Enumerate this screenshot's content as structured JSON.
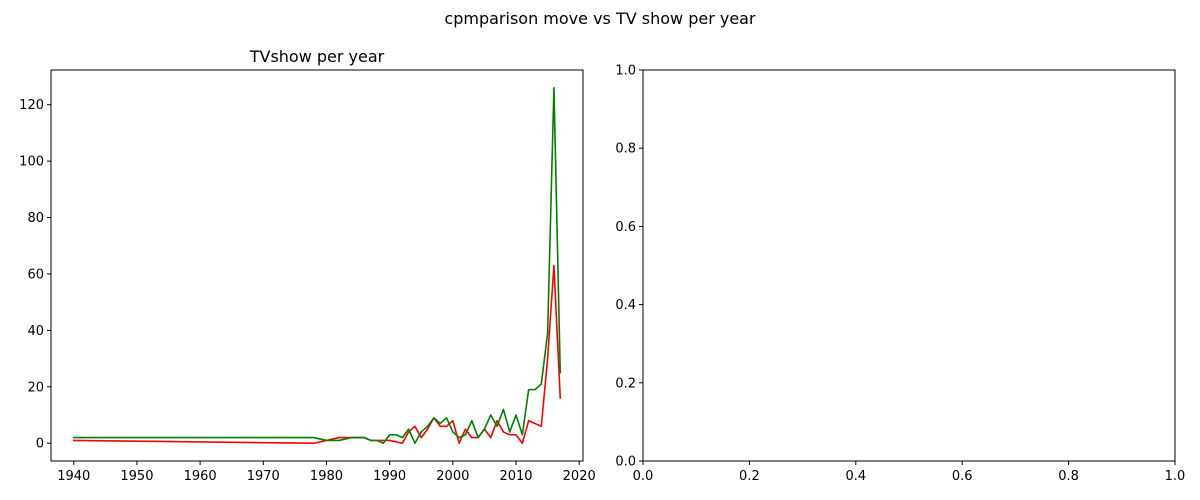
{
  "figure": {
    "suptitle": "cpmparison move vs TV show per year"
  },
  "chart_data": [
    {
      "type": "line",
      "title": "TVshow per year",
      "xlabel": "",
      "ylabel": "",
      "xlim": [
        1936.4,
        2020.6
      ],
      "ylim": [
        -6.3,
        132.3
      ],
      "xticks": [
        1940,
        1950,
        1960,
        1970,
        1980,
        1990,
        2000,
        2010,
        2020
      ],
      "yticks": [
        0,
        20,
        40,
        60,
        80,
        100,
        120
      ],
      "grid": false,
      "series": [
        {
          "color": "#ff0000",
          "x": [
            1940,
            1978,
            1980,
            1982,
            1984,
            1986,
            1987,
            1988,
            1990,
            1992,
            1993,
            1994,
            1995,
            1996,
            1997,
            1998,
            1999,
            2000,
            2001,
            2002,
            2003,
            2004,
            2005,
            2006,
            2007,
            2008,
            2009,
            2010,
            2011,
            2012,
            2013,
            2014,
            2015,
            2016,
            2017
          ],
          "values": [
            1,
            0,
            1,
            2,
            2,
            2,
            1,
            1,
            1,
            0,
            4,
            6,
            2,
            5,
            9,
            6,
            6,
            8,
            0,
            5,
            2,
            2,
            5,
            2,
            8,
            4,
            3,
            3,
            0,
            8,
            7,
            6,
            30,
            63,
            16
          ]
        },
        {
          "color": "#008000",
          "x": [
            1940,
            1978,
            1980,
            1982,
            1984,
            1986,
            1987,
            1988,
            1989,
            1990,
            1991,
            1992,
            1993,
            1994,
            1995,
            1996,
            1997,
            1998,
            1999,
            2000,
            2001,
            2002,
            2003,
            2004,
            2005,
            2006,
            2007,
            2008,
            2009,
            2010,
            2011,
            2012,
            2013,
            2014,
            2015,
            2016,
            2017
          ],
          "values": [
            2,
            2,
            1,
            1,
            2,
            2,
            1,
            1,
            0,
            3,
            3,
            2,
            5,
            0,
            4,
            6,
            9,
            7,
            9,
            4,
            2,
            3,
            8,
            2,
            5,
            10,
            6,
            12,
            4,
            10,
            3,
            19,
            19,
            21,
            39,
            126,
            25
          ]
        }
      ]
    },
    {
      "type": "line",
      "title": "",
      "xlabel": "",
      "ylabel": "",
      "xlim": [
        0.0,
        1.0
      ],
      "ylim": [
        0.0,
        1.0
      ],
      "xticks": [
        0.0,
        0.2,
        0.4,
        0.6,
        0.8,
        1.0
      ],
      "yticks": [
        0.0,
        0.2,
        0.4,
        0.6,
        0.8,
        1.0
      ],
      "grid": false,
      "series": []
    }
  ]
}
